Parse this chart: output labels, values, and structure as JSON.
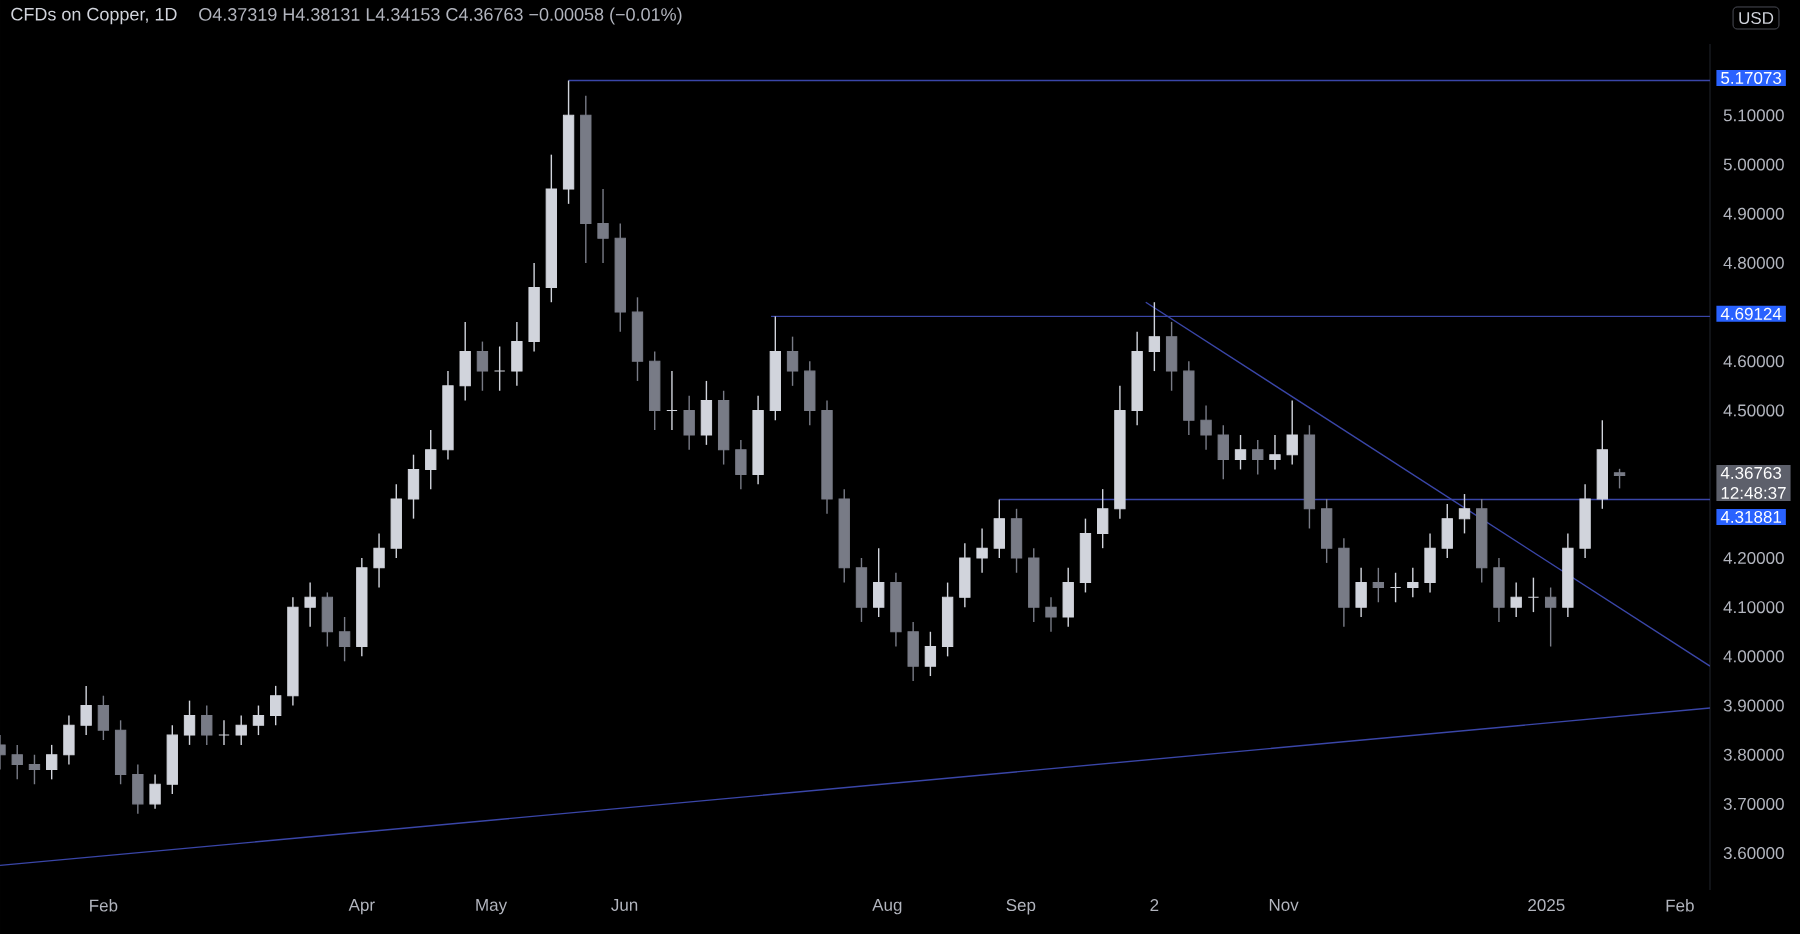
{
  "chart_data": {
    "type": "candlestick",
    "title": "CFDs on Copper, 1D",
    "subtitle": "O4.37319 H4.38131 L4.34153 C4.36763 −0.00058 (−0.01%)",
    "ylabel": "USD",
    "colors": [
      "#787b86",
      "#787b86",
      "#787b86",
      "#d1d4dc",
      "#d1d4dc",
      "#d1d4dc",
      "#787b86",
      "#787b86",
      "#787b86",
      "#d1d4dc",
      "#d1d4dc",
      "#d1d4dc",
      "#787b86",
      "#d1d4dc",
      "#d1d4dc",
      "#d1d4dc",
      "#d1d4dc",
      "#d1d4dc",
      "#d1d4dc",
      "#787b86",
      "#787b86",
      "#d1d4dc",
      "#d1d4dc",
      "#d1d4dc",
      "#d1d4dc",
      "#d1d4dc",
      "#d1d4dc",
      "#d1d4dc",
      "#787b86",
      "#d1d4dc",
      "#d1d4dc",
      "#d1d4dc",
      "#d1d4dc",
      "#d1d4dc",
      "#787b86",
      "#787b86",
      "#787b86",
      "#787b86",
      "#787b86",
      "#d1d4dc",
      "#787b86",
      "#d1d4dc",
      "#787b86",
      "#787b86",
      "#d1d4dc",
      "#d1d4dc",
      "#787b86",
      "#787b86",
      "#787b86",
      "#787b86",
      "#787b86",
      "#d1d4dc",
      "#787b86",
      "#787b86",
      "#d1d4dc",
      "#d1d4dc",
      "#d1d4dc",
      "#d1d4dc",
      "#d1d4dc",
      "#787b86",
      "#787b86",
      "#787b86",
      "#d1d4dc",
      "#d1d4dc",
      "#d1d4dc",
      "#d1d4dc",
      "#d1d4dc",
      "#d1d4dc",
      "#787b86",
      "#787b86",
      "#787b86",
      "#787b86",
      "#d1d4dc",
      "#787b86",
      "#d1d4dc",
      "#d1d4dc",
      "#787b86",
      "#787b86",
      "#787b86",
      "#d1d4dc",
      "#787b86",
      "#d1d4dc",
      "#d1d4dc",
      "#d1d4dc",
      "#d1d4dc",
      "#d1d4dc",
      "#787b86",
      "#787b86",
      "#d1d4dc",
      "#d1d4dc",
      "#787b86",
      "#d1d4dc",
      "#d1d4dc",
      "#d1d4dc",
      "#787b86"
    ],
    "x": [
      "2024-01-08",
      "2024-01-12",
      "2024-01-16",
      "2024-01-20",
      "2024-01-24",
      "2024-01-28",
      "2024-02-01",
      "2024-02-05",
      "2024-02-09",
      "2024-02-13",
      "2024-02-17",
      "2024-02-21",
      "2024-02-25",
      "2024-02-29",
      "2024-03-04",
      "2024-03-08",
      "2024-03-12",
      "2024-03-16",
      "2024-03-20",
      "2024-03-24",
      "2024-03-28",
      "2024-04-01",
      "2024-04-05",
      "2024-04-09",
      "2024-04-13",
      "2024-04-17",
      "2024-04-21",
      "2024-04-25",
      "2024-04-29",
      "2024-05-03",
      "2024-05-07",
      "2024-05-11",
      "2024-05-15",
      "2024-05-19",
      "2024-05-23",
      "2024-05-27",
      "2024-05-31",
      "2024-06-04",
      "2024-06-08",
      "2024-06-12",
      "2024-06-16",
      "2024-06-20",
      "2024-06-24",
      "2024-06-28",
      "2024-07-02",
      "2024-07-06",
      "2024-07-10",
      "2024-07-14",
      "2024-07-18",
      "2024-07-22",
      "2024-07-26",
      "2024-07-30",
      "2024-08-03",
      "2024-08-07",
      "2024-08-11",
      "2024-08-15",
      "2024-08-19",
      "2024-08-23",
      "2024-08-27",
      "2024-08-31",
      "2024-09-04",
      "2024-09-08",
      "2024-09-12",
      "2024-09-16",
      "2024-09-20",
      "2024-09-24",
      "2024-09-28",
      "2024-10-02",
      "2024-10-06",
      "2024-10-10",
      "2024-10-14",
      "2024-10-18",
      "2024-10-22",
      "2024-10-26",
      "2024-10-30",
      "2024-11-03",
      "2024-11-07",
      "2024-11-11",
      "2024-11-15",
      "2024-11-19",
      "2024-11-23",
      "2024-11-27",
      "2024-12-01",
      "2024-12-05",
      "2024-12-09",
      "2024-12-13",
      "2024-12-17",
      "2024-12-21",
      "2024-12-25",
      "2024-12-29",
      "2025-01-02",
      "2025-01-06",
      "2025-01-10",
      "2025-01-14",
      "2025-01-18"
    ],
    "ohlc": [
      [
        3.82,
        3.84,
        3.77,
        3.8
      ],
      [
        3.8,
        3.82,
        3.75,
        3.78
      ],
      [
        3.78,
        3.8,
        3.74,
        3.77
      ],
      [
        3.77,
        3.82,
        3.75,
        3.8
      ],
      [
        3.8,
        3.88,
        3.78,
        3.86
      ],
      [
        3.86,
        3.94,
        3.84,
        3.9
      ],
      [
        3.9,
        3.92,
        3.83,
        3.85
      ],
      [
        3.85,
        3.87,
        3.74,
        3.76
      ],
      [
        3.76,
        3.78,
        3.68,
        3.7
      ],
      [
        3.7,
        3.76,
        3.69,
        3.74
      ],
      [
        3.74,
        3.86,
        3.72,
        3.84
      ],
      [
        3.84,
        3.91,
        3.82,
        3.88
      ],
      [
        3.88,
        3.9,
        3.82,
        3.84
      ],
      [
        3.84,
        3.87,
        3.82,
        3.84
      ],
      [
        3.84,
        3.88,
        3.82,
        3.86
      ],
      [
        3.86,
        3.9,
        3.84,
        3.88
      ],
      [
        3.88,
        3.94,
        3.86,
        3.92
      ],
      [
        3.92,
        4.12,
        3.9,
        4.1
      ],
      [
        4.1,
        4.15,
        4.06,
        4.12
      ],
      [
        4.12,
        4.13,
        4.02,
        4.05
      ],
      [
        4.05,
        4.08,
        3.99,
        4.02
      ],
      [
        4.02,
        4.2,
        4.0,
        4.18
      ],
      [
        4.18,
        4.25,
        4.14,
        4.22
      ],
      [
        4.22,
        4.35,
        4.2,
        4.32
      ],
      [
        4.32,
        4.41,
        4.28,
        4.38
      ],
      [
        4.38,
        4.46,
        4.34,
        4.42
      ],
      [
        4.42,
        4.58,
        4.4,
        4.55
      ],
      [
        4.55,
        4.68,
        4.52,
        4.62
      ],
      [
        4.62,
        4.64,
        4.54,
        4.58
      ],
      [
        4.58,
        4.63,
        4.54,
        4.58
      ],
      [
        4.58,
        4.68,
        4.55,
        4.64
      ],
      [
        4.64,
        4.8,
        4.62,
        4.75
      ],
      [
        4.75,
        5.02,
        4.72,
        4.95
      ],
      [
        4.95,
        5.17073,
        4.92,
        5.1
      ],
      [
        5.1,
        5.14,
        4.8,
        4.88
      ],
      [
        4.88,
        4.95,
        4.8,
        4.85
      ],
      [
        4.85,
        4.88,
        4.66,
        4.7
      ],
      [
        4.7,
        4.73,
        4.56,
        4.6
      ],
      [
        4.6,
        4.62,
        4.46,
        4.5
      ],
      [
        4.5,
        4.58,
        4.46,
        4.5
      ],
      [
        4.5,
        4.53,
        4.42,
        4.45
      ],
      [
        4.45,
        4.56,
        4.43,
        4.52
      ],
      [
        4.52,
        4.54,
        4.39,
        4.42
      ],
      [
        4.42,
        4.44,
        4.34,
        4.37
      ],
      [
        4.37,
        4.53,
        4.35,
        4.5
      ],
      [
        4.5,
        4.69124,
        4.48,
        4.62
      ],
      [
        4.62,
        4.65,
        4.55,
        4.58
      ],
      [
        4.58,
        4.6,
        4.47,
        4.5
      ],
      [
        4.5,
        4.52,
        4.29,
        4.32
      ],
      [
        4.32,
        4.34,
        4.15,
        4.18
      ],
      [
        4.18,
        4.2,
        4.07,
        4.1
      ],
      [
        4.1,
        4.22,
        4.08,
        4.15
      ],
      [
        4.15,
        4.17,
        4.02,
        4.05
      ],
      [
        4.05,
        4.07,
        3.95,
        3.98
      ],
      [
        3.98,
        4.05,
        3.96,
        4.02
      ],
      [
        4.02,
        4.15,
        4.0,
        4.12
      ],
      [
        4.12,
        4.23,
        4.1,
        4.2
      ],
      [
        4.2,
        4.26,
        4.17,
        4.22
      ],
      [
        4.22,
        4.31881,
        4.2,
        4.28
      ],
      [
        4.28,
        4.3,
        4.17,
        4.2
      ],
      [
        4.2,
        4.22,
        4.07,
        4.1
      ],
      [
        4.1,
        4.12,
        4.05,
        4.08
      ],
      [
        4.08,
        4.18,
        4.06,
        4.15
      ],
      [
        4.15,
        4.28,
        4.13,
        4.25
      ],
      [
        4.25,
        4.34,
        4.22,
        4.3
      ],
      [
        4.3,
        4.55,
        4.28,
        4.5
      ],
      [
        4.5,
        4.66,
        4.47,
        4.62
      ],
      [
        4.62,
        4.72,
        4.58,
        4.65
      ],
      [
        4.65,
        4.68,
        4.54,
        4.58
      ],
      [
        4.58,
        4.6,
        4.45,
        4.48
      ],
      [
        4.48,
        4.51,
        4.42,
        4.45
      ],
      [
        4.45,
        4.47,
        4.36,
        4.4
      ],
      [
        4.4,
        4.45,
        4.38,
        4.42
      ],
      [
        4.42,
        4.44,
        4.37,
        4.4
      ],
      [
        4.4,
        4.45,
        4.38,
        4.41
      ],
      [
        4.41,
        4.52,
        4.39,
        4.45
      ],
      [
        4.45,
        4.47,
        4.26,
        4.3
      ],
      [
        4.3,
        4.32,
        4.19,
        4.22
      ],
      [
        4.22,
        4.24,
        4.06,
        4.1
      ],
      [
        4.1,
        4.18,
        4.08,
        4.15
      ],
      [
        4.15,
        4.18,
        4.11,
        4.14
      ],
      [
        4.14,
        4.17,
        4.11,
        4.14
      ],
      [
        4.14,
        4.18,
        4.12,
        4.15
      ],
      [
        4.15,
        4.25,
        4.13,
        4.22
      ],
      [
        4.22,
        4.31,
        4.2,
        4.28
      ],
      [
        4.28,
        4.33,
        4.25,
        4.3
      ],
      [
        4.3,
        4.32,
        4.15,
        4.18
      ],
      [
        4.18,
        4.2,
        4.07,
        4.1
      ],
      [
        4.1,
        4.15,
        4.08,
        4.12
      ],
      [
        4.12,
        4.16,
        4.09,
        4.12
      ],
      [
        4.12,
        4.14,
        4.02,
        4.1
      ],
      [
        4.1,
        4.25,
        4.08,
        4.22
      ],
      [
        4.22,
        4.35,
        4.2,
        4.32
      ],
      [
        4.32,
        4.48,
        4.3,
        4.42
      ],
      [
        4.37319,
        4.38131,
        4.34153,
        4.36763
      ]
    ],
    "series": [
      {
        "type": "line",
        "color": "#3a46a8",
        "x": [
          "2024-05-19",
          "2025-02-08"
        ],
        "values": [
          5.17073,
          5.17073
        ]
      },
      {
        "type": "line",
        "color": "#3a46a8",
        "x": [
          "2024-07-05",
          "2025-02-08"
        ],
        "values": [
          4.69124,
          4.69124
        ]
      },
      {
        "type": "line",
        "color": "#3a46a8",
        "x": [
          "2024-08-27",
          "2025-02-08"
        ],
        "values": [
          4.31881,
          4.31881
        ]
      },
      {
        "type": "line",
        "color": "#3a46a8",
        "x": [
          "2024-09-30",
          "2025-02-08"
        ],
        "values": [
          4.72,
          3.98
        ]
      },
      {
        "type": "line",
        "color": "#3a46a8",
        "x": [
          "2024-01-08",
          "2025-02-08"
        ],
        "values": [
          3.575,
          3.895
        ]
      }
    ],
    "annotations": [
      {
        "text": "5.17073",
        "x": "2025-02-08",
        "y": 5.17073
      },
      {
        "text": "4.69124",
        "x": "2025-02-08",
        "y": 4.69124
      },
      "4.36763",
      "12:48:37",
      {
        "text": "4.31881",
        "x": "2025-02-08",
        "y": 4.31881
      }
    ],
    "xlim": [
      "2024-01-08",
      "2025-02-08"
    ],
    "ylim": [
      3.525,
      5.245
    ],
    "xticks": [
      {
        "value": "2024-02-01",
        "label": "Feb"
      },
      {
        "value": "2024-04-01",
        "label": "Apr"
      },
      {
        "value": "2024-05-01",
        "label": "May"
      },
      {
        "value": "2024-06-01",
        "label": "Jun"
      },
      {
        "value": "2024-08-01",
        "label": "Aug"
      },
      {
        "value": "2024-09-01",
        "label": "Sep"
      },
      {
        "value": "2024-10-02",
        "label": "2"
      },
      {
        "value": "2024-11-01",
        "label": "Nov"
      },
      {
        "value": "2025-01-01",
        "label": "2025"
      },
      {
        "value": "2025-02-01",
        "label": "Feb"
      }
    ],
    "yticks": [
      {
        "value": 3.6,
        "label": "3.60000"
      },
      {
        "value": 3.7,
        "label": "3.70000"
      },
      {
        "value": 3.8,
        "label": "3.80000"
      },
      {
        "value": 3.9,
        "label": "3.90000"
      },
      {
        "value": 4.0,
        "label": "4.00000"
      },
      {
        "value": 4.1,
        "label": "4.10000"
      },
      {
        "value": 4.2,
        "label": "4.20000"
      },
      {
        "value": 4.5,
        "label": "4.50000"
      },
      {
        "value": 4.6,
        "label": "4.60000"
      },
      {
        "value": 4.8,
        "label": "4.80000"
      },
      {
        "value": 4.9,
        "label": "4.90000"
      },
      {
        "value": 5.0,
        "label": "5.00000"
      },
      {
        "value": 5.1,
        "label": "5.10000"
      }
    ]
  }
}
